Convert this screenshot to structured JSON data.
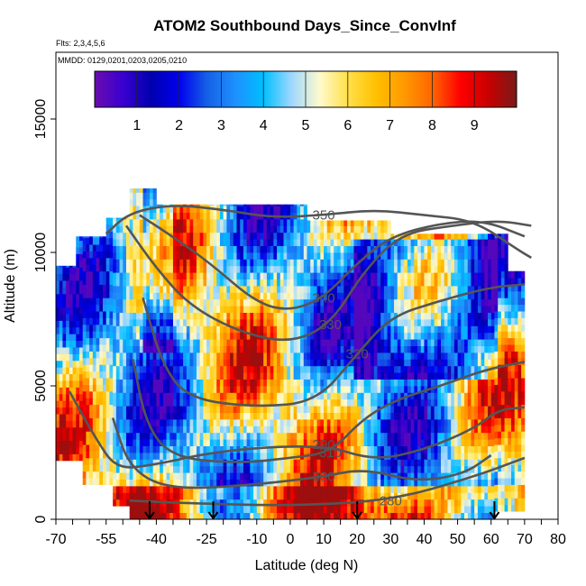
{
  "chart_data": {
    "type": "heatmap",
    "title": "ATOM2 Southbound Days_Since_ConvInf",
    "notes": [
      "Flts: 2,3,4,5,6",
      "MMDD: 0129,0201,0203,0205,0210"
    ],
    "xlabel": "Latitude (deg N)",
    "ylabel": "Altitude (m)",
    "xlim": [
      -70,
      80
    ],
    "ylim": [
      0,
      17500
    ],
    "x_ticks": [
      -70,
      -55,
      -40,
      -25,
      -10,
      0,
      10,
      20,
      30,
      40,
      50,
      60,
      70,
      80
    ],
    "x_ticks_major": [
      -70,
      -55,
      -40,
      -25,
      -10,
      0,
      10,
      20,
      30,
      40,
      50,
      60,
      70,
      80
    ],
    "x_ticks_minor_step": 5,
    "y_ticks": [
      0,
      5000,
      10000,
      15000
    ],
    "colorbar": {
      "range": [
        0,
        10
      ],
      "ticks": [
        1,
        2,
        3,
        4,
        5,
        6,
        7,
        8,
        9
      ],
      "colors": [
        "#6a0dad",
        "#3a00d0",
        "#0000ae",
        "#0000ee",
        "#1560e6",
        "#1e90ff",
        "#00bfff",
        "#9fd7ff",
        "#fffacd",
        "#ffe04a",
        "#ffc000",
        "#ff9900",
        "#ff6600",
        "#ff0000",
        "#c80000",
        "#7a1a1a"
      ]
    },
    "contours": [
      {
        "label": "280",
        "points": [
          [
            -48,
            700
          ],
          [
            -30,
            600
          ],
          [
            0,
            500
          ],
          [
            30,
            700
          ],
          [
            55,
            1600
          ],
          [
            70,
            2300
          ]
        ]
      },
      {
        "label": "290",
        "points": [
          [
            -66,
            4800
          ],
          [
            -58,
            3000
          ],
          [
            -52,
            1900
          ],
          [
            -42,
            2000
          ],
          [
            -20,
            2600
          ],
          [
            10,
            2800
          ],
          [
            25,
            2200
          ],
          [
            40,
            2600
          ],
          [
            55,
            3400
          ],
          [
            62,
            4100
          ],
          [
            70,
            4200
          ]
        ]
      },
      {
        "label": "300",
        "points": [
          [
            -53,
            3800
          ],
          [
            -48,
            1900
          ],
          [
            -36,
            1100
          ],
          [
            -10,
            1300
          ],
          [
            10,
            1600
          ],
          [
            22,
            1900
          ],
          [
            38,
            1400
          ],
          [
            52,
            1700
          ],
          [
            60,
            2400
          ]
        ]
      },
      {
        "label": "310",
        "points": [
          [
            -47,
            6000
          ],
          [
            -43,
            3500
          ],
          [
            -35,
            2300
          ],
          [
            -15,
            2100
          ],
          [
            0,
            2300
          ],
          [
            12,
            2500
          ],
          [
            22,
            3800
          ],
          [
            32,
            4500
          ],
          [
            45,
            5000
          ],
          [
            58,
            5600
          ],
          [
            70,
            5900
          ]
        ]
      },
      {
        "label": "320",
        "points": [
          [
            -44,
            8300
          ],
          [
            -38,
            5700
          ],
          [
            -30,
            4500
          ],
          [
            -10,
            4200
          ],
          [
            8,
            4400
          ],
          [
            20,
            6200
          ],
          [
            30,
            7600
          ],
          [
            45,
            8200
          ],
          [
            60,
            8700
          ],
          [
            70,
            8800
          ]
        ]
      },
      {
        "label": "330",
        "points": [
          [
            -49,
            11000
          ],
          [
            -40,
            9400
          ],
          [
            -30,
            8000
          ],
          [
            -15,
            7000
          ],
          [
            0,
            6600
          ],
          [
            12,
            7300
          ],
          [
            22,
            9300
          ],
          [
            33,
            10700
          ],
          [
            48,
            11000
          ],
          [
            62,
            11200
          ],
          [
            72,
            11000
          ]
        ]
      },
      {
        "label": "340",
        "points": [
          [
            -45,
            11400
          ],
          [
            -34,
            10500
          ],
          [
            -24,
            9600
          ],
          [
            -10,
            8100
          ],
          [
            0,
            7800
          ],
          [
            10,
            8300
          ],
          [
            20,
            9600
          ],
          [
            30,
            10600
          ],
          [
            45,
            11100
          ],
          [
            58,
            11200
          ],
          [
            70,
            10600
          ]
        ]
      },
      {
        "label": "350",
        "points": [
          [
            -55,
            10700
          ],
          [
            -48,
            11500
          ],
          [
            -35,
            11800
          ],
          [
            -20,
            11600
          ],
          [
            -5,
            11300
          ],
          [
            10,
            11400
          ],
          [
            25,
            11600
          ],
          [
            40,
            11400
          ],
          [
            55,
            11200
          ],
          [
            68,
            10100
          ],
          [
            72,
            9800
          ]
        ]
      }
    ],
    "arrows_lat": [
      -42,
      -23,
      20,
      61
    ]
  }
}
